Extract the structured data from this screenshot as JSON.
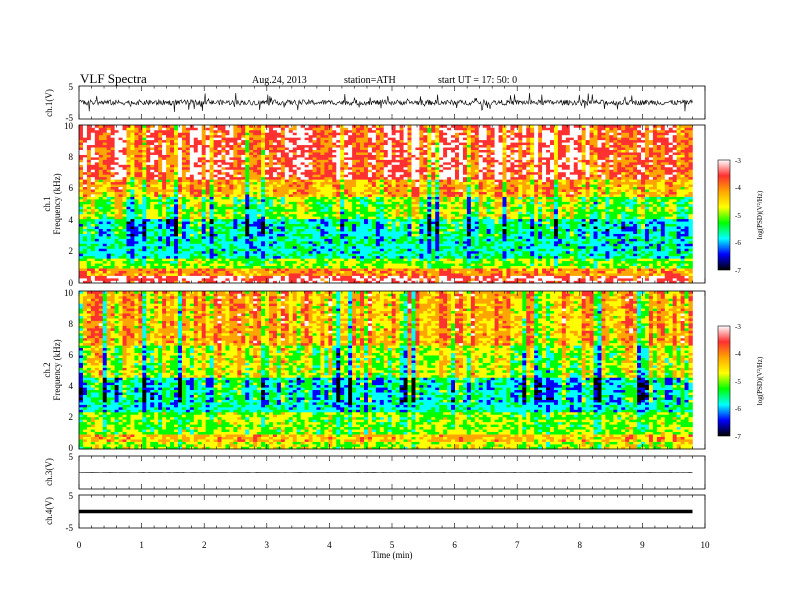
{
  "header": {
    "title": "VLF  Spectra",
    "date": "Aug.24, 2013",
    "station": "station=ATH",
    "start": "start  UT  =    17: 50: 0"
  },
  "chart_data": [
    {
      "type": "line",
      "id": "ch1-waveform",
      "ylabel": "ch.1(V)",
      "ylim": [
        -5,
        5
      ],
      "yticks": [
        "5",
        "-5"
      ],
      "xlim": [
        0,
        10
      ],
      "description_of_signal": "noisy waveform mostly between -1 and 1 V, with spikes up to about +/-3 V",
      "data_extent_min": 9.8,
      "color": "#000000"
    },
    {
      "type": "heatmap",
      "id": "ch1-spectrogram",
      "ylabel": "ch.1",
      "ylabel2": "Frequency  (kHz)",
      "ylim": [
        0,
        10
      ],
      "yticks": [
        "0",
        "2",
        "4",
        "6",
        "8",
        "10"
      ],
      "xlim": [
        0,
        10
      ],
      "data_extent_min": 9.8,
      "typical_log_psd_by_band": [
        {
          "f_khz": [
            0,
            0.4
          ],
          "level": -3.3
        },
        {
          "f_khz": [
            0.4,
            1.0
          ],
          "level": -4.0
        },
        {
          "f_khz": [
            1.0,
            1.5
          ],
          "level": -5.0
        },
        {
          "f_khz": [
            1.5,
            4.0
          ],
          "level": -5.7
        },
        {
          "f_khz": [
            4.0,
            5.5
          ],
          "level": -5.0
        },
        {
          "f_khz": [
            5.5,
            6.5
          ],
          "level": -4.2
        },
        {
          "f_khz": [
            6.5,
            10.0
          ],
          "level": -3.5
        }
      ],
      "colorbar": {
        "label": "log(PSD)(V²/Hz)",
        "range": [
          -7,
          -3
        ],
        "ticks": [
          "-3",
          "-4",
          "-5",
          "-6",
          "-7"
        ],
        "colors": [
          "#ffffff",
          "#ff3030",
          "#ffa500",
          "#ffff00",
          "#00ff00",
          "#00ffff",
          "#0000ff",
          "#000000"
        ]
      }
    },
    {
      "type": "heatmap",
      "id": "ch2-spectrogram",
      "ylabel": "ch.2",
      "ylabel2": "Frequency  (kHz)",
      "ylim": [
        0,
        10
      ],
      "yticks": [
        "0",
        "2",
        "4",
        "6",
        "8",
        "10"
      ],
      "xlim": [
        0,
        10
      ],
      "data_extent_min": 9.8,
      "typical_log_psd_by_band": [
        {
          "f_khz": [
            0,
            0.4
          ],
          "level": -4.8
        },
        {
          "f_khz": [
            0.4,
            1.0
          ],
          "level": -4.3
        },
        {
          "f_khz": [
            1.0,
            2.4
          ],
          "level": -5.0
        },
        {
          "f_khz": [
            2.4,
            4.5
          ],
          "level": -5.7
        },
        {
          "f_khz": [
            4.5,
            6.5
          ],
          "level": -4.8
        },
        {
          "f_khz": [
            6.5,
            10.0
          ],
          "level": -4.2
        }
      ],
      "colorbar": {
        "label": "log(PSD)(V²/Hz)",
        "range": [
          -7,
          -3
        ],
        "ticks": [
          "-3",
          "-4",
          "-5",
          "-6",
          "-7"
        ],
        "colors": [
          "#ffffff",
          "#ff3030",
          "#ffa500",
          "#ffff00",
          "#00ff00",
          "#00ffff",
          "#0000ff",
          "#000000"
        ]
      }
    },
    {
      "type": "line",
      "id": "ch3-waveform",
      "ylabel": "ch.3(V)",
      "ylim": [
        -5,
        5
      ],
      "yticks": [
        "5"
      ],
      "xlim": [
        0,
        10
      ],
      "level_v": 0,
      "description_of_signal": "flat thin trace near 0 V",
      "data_extent_min": 9.8,
      "color": "#000000"
    },
    {
      "type": "line",
      "id": "ch4-waveform",
      "ylabel": "ch.4(V)",
      "ylim": [
        -5,
        5
      ],
      "yticks": [
        "5",
        "-5"
      ],
      "xlim": [
        0,
        10
      ],
      "level_v": 0,
      "description_of_signal": "flat thick trace at 0 V",
      "data_extent_min": 9.8,
      "color": "#000000"
    }
  ],
  "xaxis": {
    "label": "Time  (min)",
    "ticks": [
      "0",
      "1",
      "2",
      "3",
      "4",
      "5",
      "6",
      "7",
      "8",
      "9",
      "10"
    ],
    "range": [
      0,
      10
    ]
  }
}
